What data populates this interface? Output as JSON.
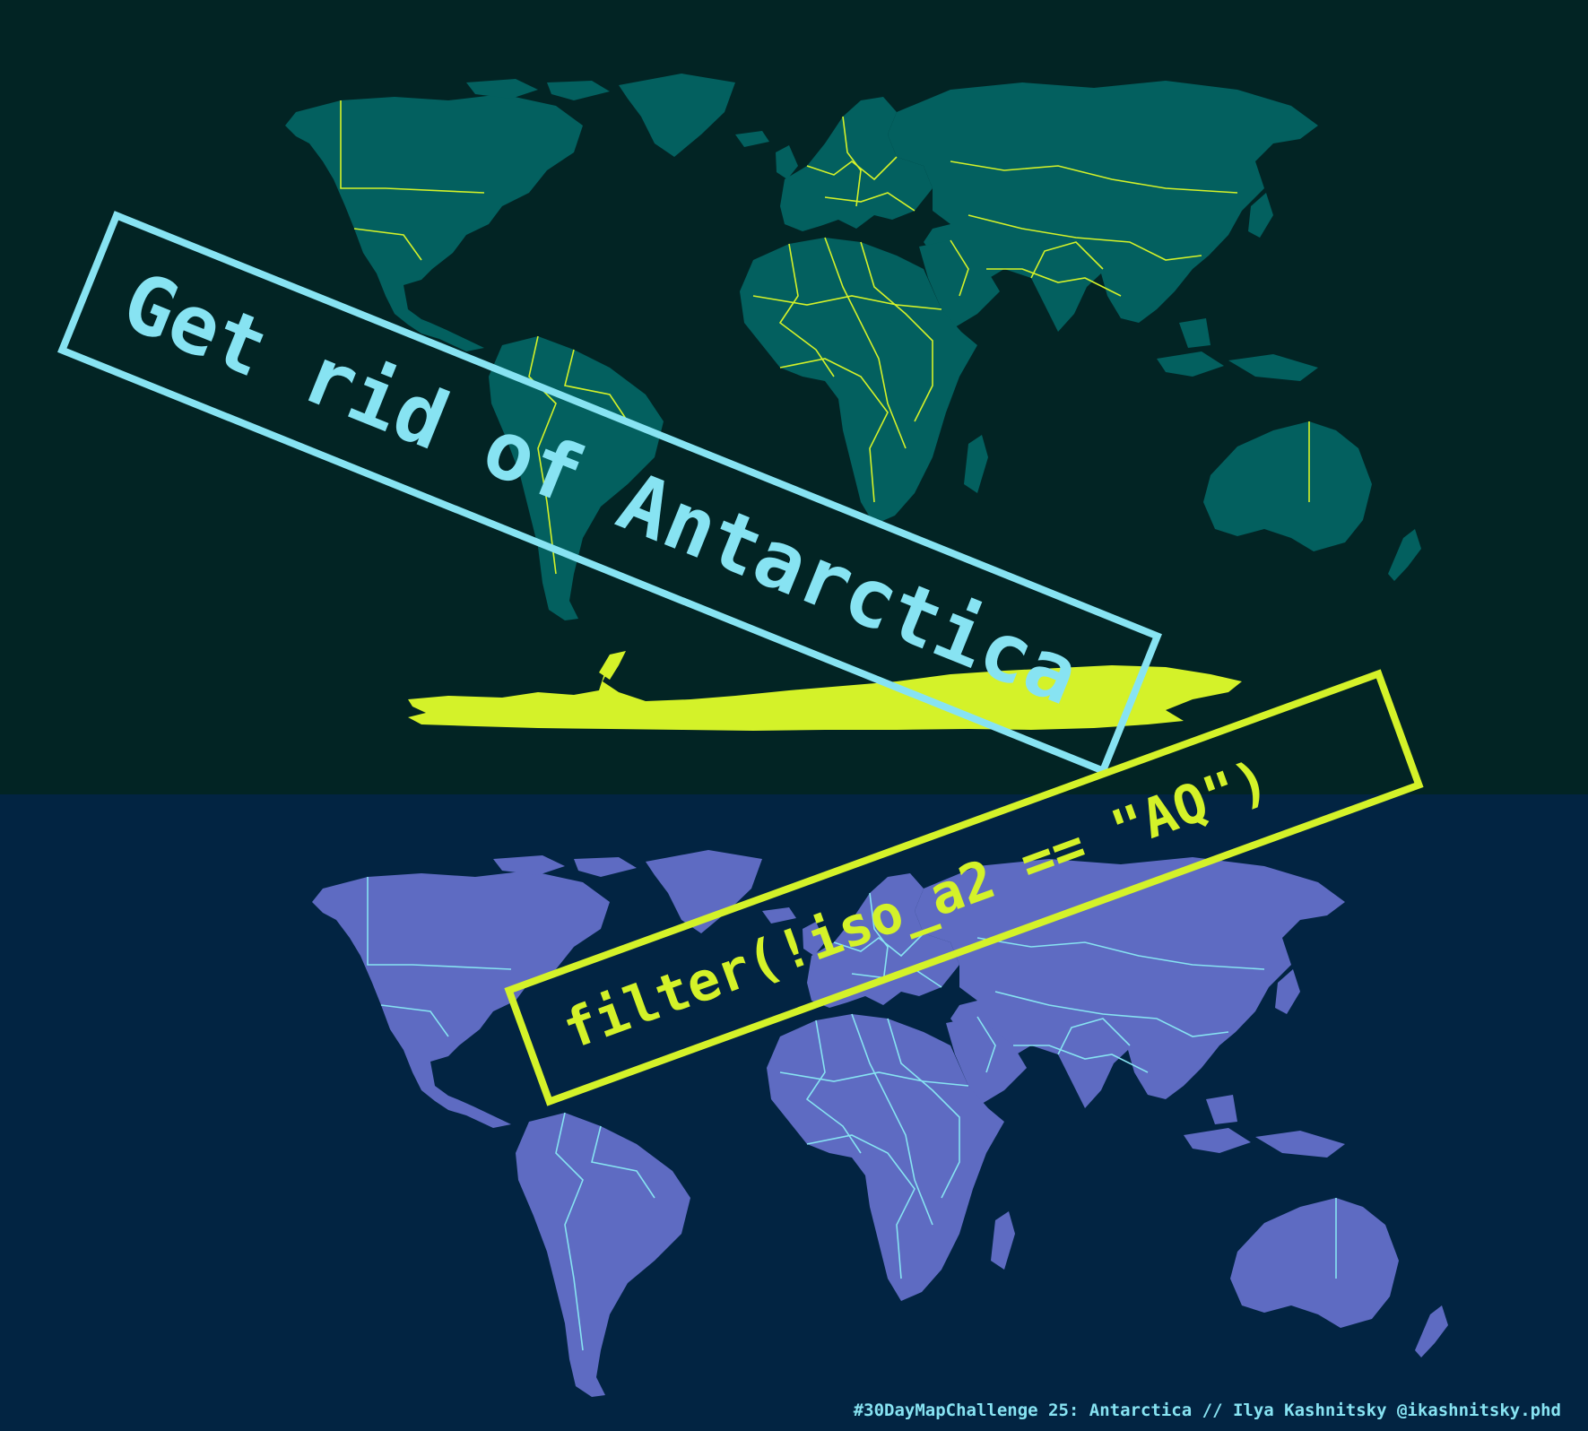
{
  "stamps": {
    "top_text": "Get rid of Antarctica",
    "bottom_text": "filter(!iso_a2 == \"AQ\")"
  },
  "caption": "#30DayMapChallenge 25: Antarctica // Ilya Kashnitsky @ikashnitsky.phd",
  "colors": {
    "top_background": "#022424",
    "top_land": "#03605f",
    "top_borders": "#d4f229",
    "antarctica": "#d4f229",
    "bottom_background": "#022442",
    "bottom_land": "#5e6bc2",
    "bottom_borders": "#87e3f2",
    "stamp_top": "#87e3f2",
    "stamp_bottom": "#d4f229"
  },
  "maps": {
    "top": {
      "projection": "Robinson",
      "includes_antarctica": true
    },
    "bottom": {
      "projection": "Robinson",
      "includes_antarctica": false
    }
  }
}
